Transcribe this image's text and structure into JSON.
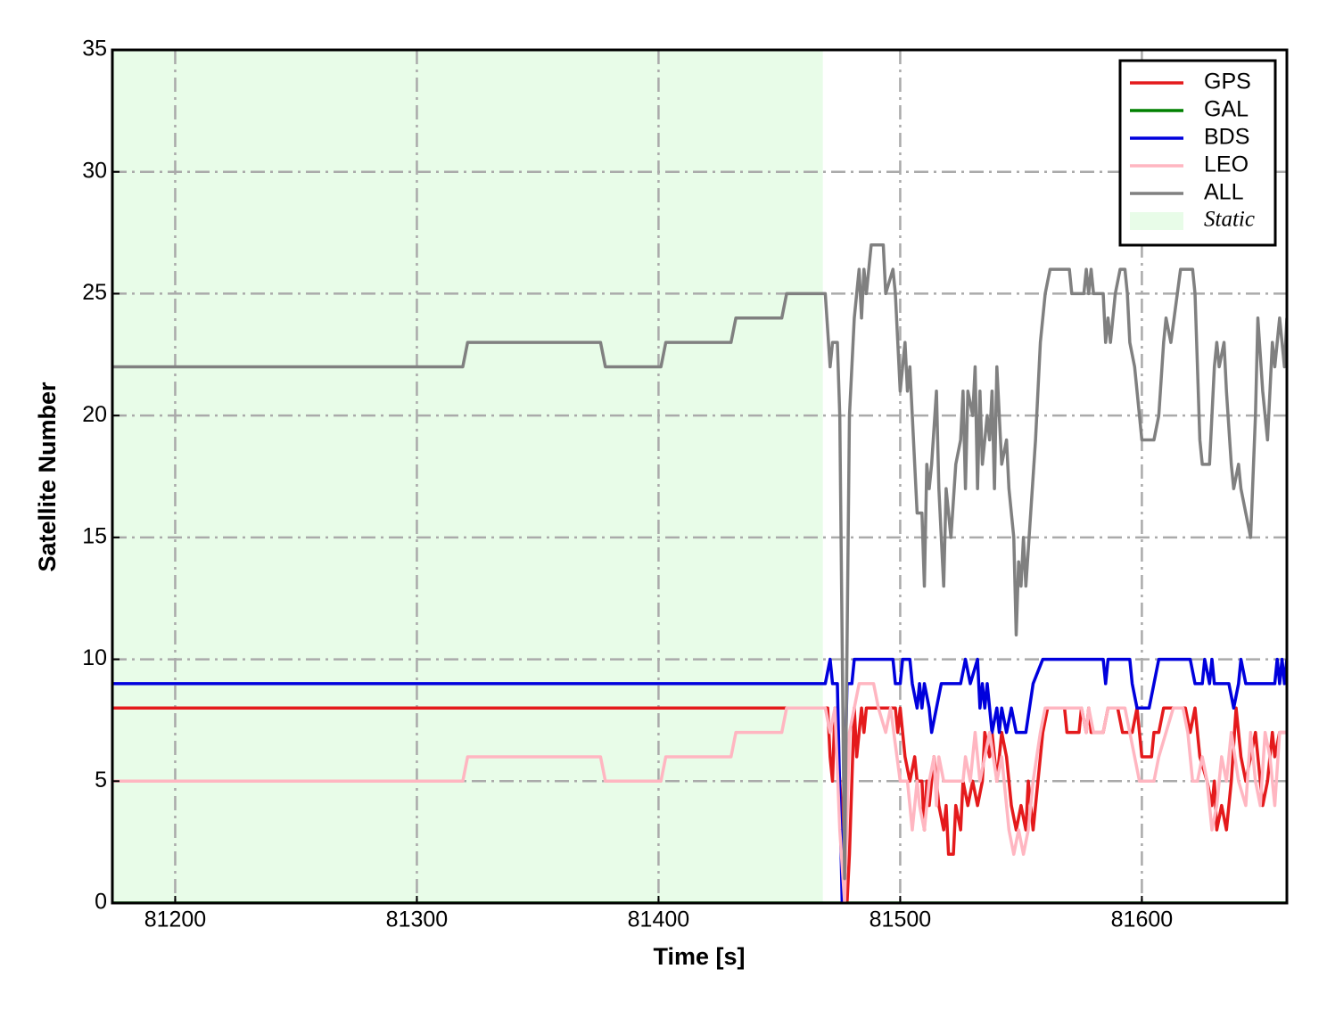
{
  "chart_data": {
    "type": "line",
    "xlabel": "Time [s]",
    "ylabel": "Satellite Number",
    "xlim": [
      81174,
      81660
    ],
    "ylim": [
      0,
      35
    ],
    "xticks": [
      81200,
      81300,
      81400,
      81500,
      81600
    ],
    "yticks": [
      0,
      5,
      10,
      15,
      20,
      25,
      30,
      35
    ],
    "grid": true,
    "legend": "upper right",
    "shade": {
      "label": "Static",
      "x": [
        81174,
        81468
      ],
      "color": "#e8fce8"
    },
    "series": [
      {
        "name": "GPS",
        "color": "#e41a1c",
        "x": [
          81174,
          81470,
          81471,
          81472,
          81473,
          81475,
          81478,
          81479,
          81481,
          81482,
          81484,
          81485,
          81486,
          81498,
          81499,
          81500,
          81502,
          81504,
          81506,
          81507,
          81509,
          81510,
          81511,
          81512,
          81514,
          81516,
          81518,
          81519,
          81520,
          81522,
          81523,
          81525,
          81526,
          81528,
          81530,
          81532,
          81534,
          81535,
          81537,
          81538,
          81540,
          81542,
          81544,
          81546,
          81548,
          81550,
          81552,
          81553,
          81555,
          81557,
          81559,
          81561,
          81568,
          81569,
          81574,
          81575,
          81577,
          81578,
          81579,
          81584,
          81586,
          81590,
          81592,
          81596,
          81598,
          81600,
          81604,
          81605,
          81607,
          81609,
          81618,
          81620,
          81622,
          81624,
          81627,
          81629,
          81630,
          81631,
          81633,
          81635,
          81637,
          81639,
          81641,
          81643,
          81645,
          81647,
          81650,
          81652,
          81654,
          81655,
          81657,
          81660
        ],
        "values": [
          8,
          8,
          6,
          5,
          8,
          5,
          0,
          2,
          8,
          6,
          8,
          7,
          8,
          8,
          7,
          8,
          6,
          5,
          6,
          5,
          5,
          3,
          5,
          4,
          6,
          4,
          3,
          4,
          2,
          2,
          4,
          3,
          5,
          4,
          5,
          4,
          5,
          7,
          6,
          7,
          5,
          7,
          6,
          4,
          3,
          4,
          3,
          5,
          3,
          5,
          7,
          8,
          8,
          7,
          7,
          8,
          7,
          8,
          7,
          7,
          8,
          8,
          7,
          7,
          8,
          6,
          6,
          7,
          7,
          8,
          8,
          7,
          8,
          6,
          5,
          4,
          5,
          3,
          4,
          3,
          5,
          8,
          6,
          5,
          6,
          7,
          4,
          5,
          7,
          6,
          7,
          7
        ]
      },
      {
        "name": "GAL",
        "color": "#008000",
        "x": [
          81174,
          81660
        ],
        "values": [
          0,
          0
        ]
      },
      {
        "name": "BDS",
        "color": "#0000dd",
        "x": [
          81174,
          81469,
          81471,
          81472,
          81474,
          81476,
          81478,
          81480,
          81481,
          81497,
          81498,
          81500,
          81501,
          81504,
          81505,
          81507,
          81508,
          81509,
          81510,
          81512,
          81513,
          81515,
          81517,
          81525,
          81527,
          81529,
          81532,
          81533,
          81534,
          81535,
          81536,
          81537,
          81538,
          81540,
          81541,
          81542,
          81544,
          81546,
          81548,
          81552,
          81555,
          81559,
          81584,
          81585,
          81586,
          81595,
          81596,
          81598,
          81603,
          81605,
          81607,
          81620,
          81622,
          81625,
          81626,
          81628,
          81629,
          81630,
          81636,
          81638,
          81640,
          81641,
          81643,
          81655,
          81656,
          81657,
          81658,
          81659,
          81660
        ],
        "values": [
          9,
          9,
          10,
          9,
          9,
          0,
          9,
          9,
          10,
          10,
          9,
          9,
          10,
          10,
          9,
          8,
          9,
          8,
          9,
          8,
          7,
          8,
          9,
          9,
          10,
          9,
          10,
          8,
          9,
          8,
          9,
          8,
          7,
          8,
          7,
          8,
          7,
          8,
          7,
          7,
          9,
          10,
          10,
          9,
          10,
          10,
          9,
          8,
          8,
          9,
          10,
          10,
          9,
          9,
          10,
          9,
          10,
          9,
          9,
          8,
          9,
          10,
          9,
          9,
          10,
          9,
          10,
          9,
          10
        ]
      },
      {
        "name": "LEO",
        "color": "#ffb6c1",
        "x": [
          81174,
          81319,
          81321,
          81376,
          81378,
          81401,
          81403,
          81430,
          81432,
          81451,
          81453,
          81469,
          81471,
          81473,
          81475,
          81477,
          81479,
          81481,
          81483,
          81489,
          81491,
          81494,
          81496,
          81500,
          81503,
          81505,
          81507,
          81508,
          81510,
          81512,
          81514,
          81515,
          81516,
          81518,
          81526,
          81527,
          81529,
          81531,
          81533,
          81535,
          81537,
          81540,
          81542,
          81545,
          81547,
          81549,
          81551,
          81553,
          81555,
          81558,
          81560,
          81575,
          81577,
          81578,
          81580,
          81584,
          81586,
          81593,
          81595,
          81597,
          81599,
          81605,
          81607,
          81610,
          81613,
          81617,
          81619,
          81621,
          81623,
          81625,
          81627,
          81629,
          81631,
          81633,
          81635,
          81637,
          81640,
          81643,
          81645,
          81647,
          81649,
          81651,
          81653,
          81655,
          81657,
          81660
        ],
        "values": [
          5,
          5,
          6,
          6,
          5,
          5,
          6,
          6,
          7,
          7,
          8,
          8,
          7,
          8,
          3,
          0,
          7,
          8,
          9,
          9,
          8,
          7,
          8,
          5,
          5,
          3,
          5,
          4,
          3,
          5,
          6,
          4,
          6,
          5,
          5,
          6,
          5,
          7,
          5,
          6,
          7,
          5,
          6,
          3,
          2,
          3,
          2,
          3,
          5,
          7,
          8,
          8,
          7,
          8,
          7,
          7,
          8,
          8,
          7,
          6,
          5,
          5,
          6,
          7,
          8,
          8,
          7,
          5,
          5,
          6,
          5,
          3,
          4,
          6,
          5,
          7,
          5,
          4,
          7,
          5,
          4,
          7,
          6,
          4,
          7,
          7
        ]
      },
      {
        "name": "ALL",
        "color": "#808080",
        "x": [
          81174,
          81319,
          81321,
          81376,
          81378,
          81401,
          81403,
          81430,
          81432,
          81451,
          81453,
          81469,
          81471,
          81472,
          81474,
          81475,
          81477,
          81479,
          81481,
          81483,
          81484,
          81485,
          81486,
          81488,
          81493,
          81494,
          81497,
          81498,
          81500,
          81502,
          81503,
          81504,
          81505,
          81507,
          81509,
          81510,
          81511,
          81512,
          81513,
          81515,
          81516,
          81518,
          81519,
          81521,
          81523,
          81525,
          81526,
          81527,
          81528,
          81530,
          81531,
          81532,
          81533,
          81534,
          81536,
          81537,
          81538,
          81539,
          81540,
          81542,
          81544,
          81545,
          81547,
          81548,
          81549,
          81550,
          81551,
          81552,
          81554,
          81556,
          81558,
          81560,
          81562,
          81570,
          81571,
          81576,
          81577,
          81578,
          81579,
          81580,
          81584,
          81585,
          81586,
          81587,
          81589,
          81591,
          81593,
          81594,
          81595,
          81597,
          81599,
          81600,
          81605,
          81607,
          81609,
          81610,
          81612,
          81616,
          81621,
          81622,
          81624,
          81625,
          81628,
          81630,
          81631,
          81632,
          81634,
          81635,
          81637,
          81638,
          81640,
          81641,
          81645,
          81647,
          81648,
          81650,
          81652,
          81654,
          81655,
          81657,
          81659,
          81660
        ],
        "values": [
          22,
          22,
          23,
          23,
          22,
          22,
          23,
          23,
          24,
          24,
          25,
          25,
          22,
          23,
          23,
          20,
          1,
          20,
          24,
          26,
          24,
          26,
          25,
          27,
          27,
          25,
          26,
          25,
          21,
          23,
          21,
          22,
          20,
          16,
          16,
          13,
          18,
          17,
          18,
          21,
          17,
          13,
          17,
          15,
          18,
          19,
          21,
          17,
          21,
          20,
          22,
          17,
          21,
          18,
          20,
          19,
          21,
          17,
          22,
          18,
          19,
          17,
          15,
          11,
          14,
          13,
          15,
          13,
          16,
          19,
          23,
          25,
          26,
          26,
          25,
          25,
          26,
          25,
          26,
          25,
          25,
          23,
          24,
          23,
          25,
          26,
          26,
          25,
          23,
          22,
          20,
          19,
          19,
          20,
          23,
          24,
          23,
          26,
          26,
          25,
          19,
          18,
          18,
          22,
          23,
          22,
          23,
          21,
          18,
          17,
          18,
          17,
          15,
          20,
          24,
          21,
          19,
          23,
          22,
          24,
          22,
          24
        ]
      }
    ]
  }
}
